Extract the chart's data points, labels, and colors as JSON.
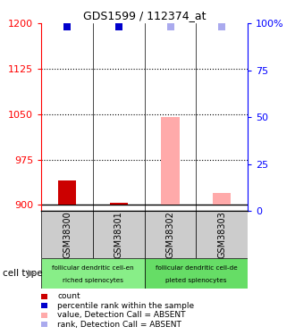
{
  "title": "GDS1599 / 112374_at",
  "samples": [
    "GSM38300",
    "GSM38301",
    "GSM38302",
    "GSM38303"
  ],
  "ylim_left": [
    890,
    1200
  ],
  "ylim_right": [
    0,
    100
  ],
  "yticks_left": [
    900,
    975,
    1050,
    1125,
    1200
  ],
  "yticks_right": [
    0,
    25,
    50,
    75,
    100
  ],
  "yticks_right_labels": [
    "0",
    "25",
    "50",
    "75",
    "100%"
  ],
  "bar_values": [
    940,
    903,
    1046,
    920
  ],
  "bar_absent": [
    false,
    false,
    true,
    true
  ],
  "rank_values": [
    98,
    98,
    98,
    98
  ],
  "rank_absent": [
    false,
    false,
    true,
    true
  ],
  "bar_color_present": "#cc0000",
  "bar_color_absent": "#ffaaaa",
  "rank_color_present": "#0000cc",
  "rank_color_absent": "#aaaaee",
  "cell_type_groups": [
    {
      "label": "follicular dendritic cell-en\nriched splenocytes",
      "start": 0,
      "end": 2,
      "color": "#88ee88"
    },
    {
      "label": "follicular dendritic cell-de\npleted splenocytes",
      "start": 2,
      "end": 4,
      "color": "#66dd66"
    }
  ],
  "dotted_yticks": [
    975,
    1050,
    1125
  ],
  "base_value": 900,
  "legend_items": [
    {
      "color": "#cc0000",
      "label": "count"
    },
    {
      "color": "#0000cc",
      "label": "percentile rank within the sample"
    },
    {
      "color": "#ffaaaa",
      "label": "value, Detection Call = ABSENT"
    },
    {
      "color": "#aaaaee",
      "label": "rank, Detection Call = ABSENT"
    }
  ]
}
